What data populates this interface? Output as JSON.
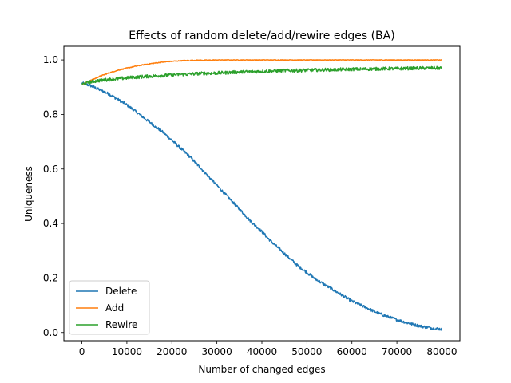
{
  "chart_data": {
    "type": "line",
    "title": "Effects of random delete/add/rewire edges (BA)",
    "xlabel": "Number of changed edges",
    "ylabel": "Uniqueness",
    "xlim": [
      -4000,
      84000
    ],
    "ylim": [
      -0.03,
      1.05
    ],
    "xticks": [
      0,
      10000,
      20000,
      30000,
      40000,
      50000,
      60000,
      70000,
      80000
    ],
    "xtick_labels": [
      "0",
      "10000",
      "20000",
      "30000",
      "40000",
      "50000",
      "60000",
      "70000",
      "80000"
    ],
    "yticks": [
      0.0,
      0.2,
      0.4,
      0.6,
      0.8,
      1.0
    ],
    "ytick_labels": [
      "0.0",
      "0.2",
      "0.4",
      "0.6",
      "0.8",
      "1.0"
    ],
    "grid": false,
    "legend_position": "lower-left",
    "series": [
      {
        "name": "Delete",
        "color": "#1f77b4",
        "x": [
          0,
          2000,
          4000,
          6000,
          8000,
          10000,
          12000,
          14000,
          16000,
          18000,
          20000,
          22000,
          24000,
          26000,
          28000,
          30000,
          32000,
          34000,
          36000,
          38000,
          40000,
          42000,
          44000,
          46000,
          48000,
          50000,
          52000,
          54000,
          56000,
          58000,
          60000,
          62000,
          64000,
          66000,
          68000,
          70000,
          72000,
          74000,
          76000,
          78000,
          80000
        ],
        "values": [
          0.915,
          0.905,
          0.89,
          0.875,
          0.855,
          0.835,
          0.81,
          0.785,
          0.76,
          0.735,
          0.705,
          0.675,
          0.645,
          0.61,
          0.575,
          0.54,
          0.505,
          0.47,
          0.435,
          0.4,
          0.37,
          0.335,
          0.305,
          0.275,
          0.245,
          0.22,
          0.195,
          0.175,
          0.155,
          0.135,
          0.115,
          0.1,
          0.085,
          0.07,
          0.058,
          0.047,
          0.037,
          0.028,
          0.021,
          0.016,
          0.012
        ],
        "noise": 0.005
      },
      {
        "name": "Add",
        "color": "#ff7f0e",
        "x": [
          0,
          2000,
          4000,
          6000,
          8000,
          10000,
          12000,
          14000,
          16000,
          18000,
          20000,
          22000,
          24000,
          26000,
          28000,
          30000,
          32000,
          34000,
          36000,
          38000,
          40000,
          42000,
          44000,
          46000,
          48000,
          50000,
          52000,
          54000,
          56000,
          58000,
          60000,
          62000,
          64000,
          66000,
          68000,
          70000,
          72000,
          74000,
          76000,
          78000,
          80000
        ],
        "values": [
          0.91,
          0.925,
          0.94,
          0.952,
          0.962,
          0.97,
          0.977,
          0.983,
          0.988,
          0.992,
          0.995,
          0.997,
          0.998,
          0.999,
          0.999,
          1.0,
          1.0,
          1.0,
          1.0,
          1.0,
          1.0,
          1.0,
          1.0,
          1.0,
          1.0,
          1.0,
          1.0,
          1.0,
          1.0,
          1.0,
          1.0,
          1.0,
          1.0,
          1.0,
          1.0,
          1.0,
          1.0,
          1.0,
          1.0,
          1.0,
          1.0
        ],
        "noise": 0.0015
      },
      {
        "name": "Rewire",
        "color": "#2ca02c",
        "x": [
          0,
          2000,
          4000,
          6000,
          8000,
          10000,
          12000,
          14000,
          16000,
          18000,
          20000,
          22000,
          24000,
          26000,
          28000,
          30000,
          32000,
          34000,
          36000,
          38000,
          40000,
          42000,
          44000,
          46000,
          48000,
          50000,
          52000,
          54000,
          56000,
          58000,
          60000,
          62000,
          64000,
          66000,
          68000,
          70000,
          72000,
          74000,
          76000,
          78000,
          80000
        ],
        "values": [
          0.91,
          0.92,
          0.925,
          0.928,
          0.931,
          0.934,
          0.937,
          0.939,
          0.941,
          0.943,
          0.945,
          0.947,
          0.948,
          0.95,
          0.951,
          0.952,
          0.953,
          0.955,
          0.956,
          0.957,
          0.958,
          0.959,
          0.96,
          0.961,
          0.961,
          0.962,
          0.963,
          0.964,
          0.964,
          0.965,
          0.966,
          0.966,
          0.967,
          0.967,
          0.968,
          0.968,
          0.969,
          0.969,
          0.97,
          0.97,
          0.97
        ],
        "noise": 0.006
      }
    ]
  }
}
